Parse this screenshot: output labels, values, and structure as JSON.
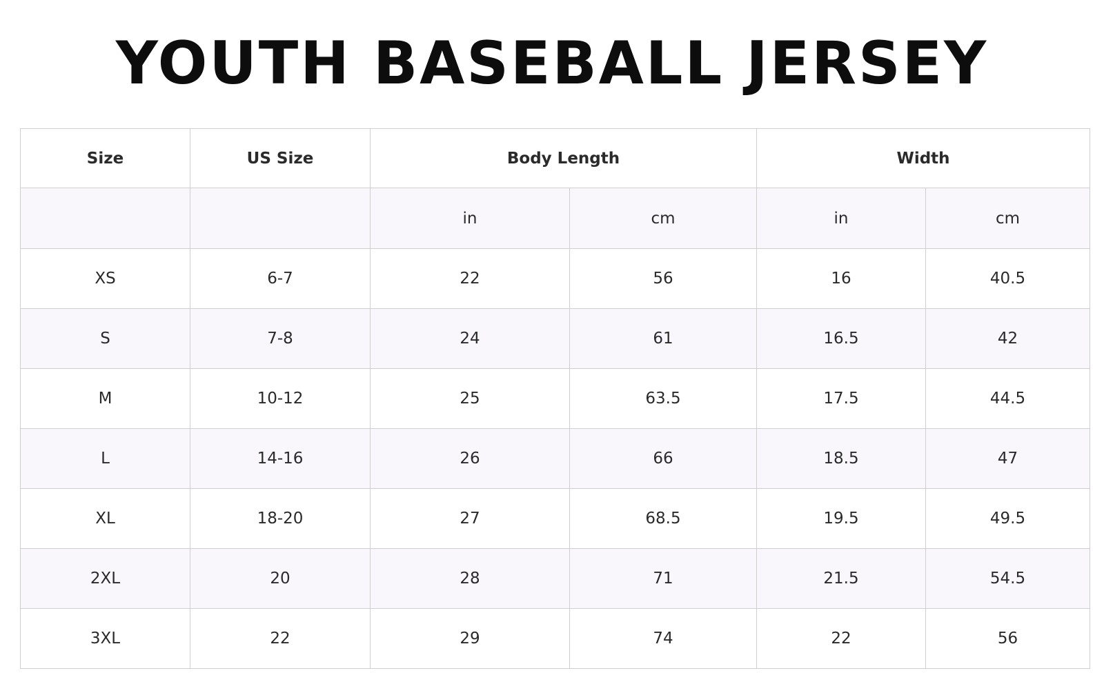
{
  "title": "YOUTH BASEBALL JERSEY",
  "table": {
    "headers": {
      "size": "Size",
      "us_size": "US Size",
      "body_length": "Body Length",
      "width": "Width"
    },
    "units": {
      "body_length_in": "in",
      "body_length_cm": "cm",
      "width_in": "in",
      "width_cm": "cm"
    },
    "rows": [
      [
        "XS",
        "6-7",
        "22",
        "56",
        "16",
        "40.5"
      ],
      [
        "S",
        "7-8",
        "24",
        "61",
        "16.5",
        "42"
      ],
      [
        "M",
        "10-12",
        "25",
        "63.5",
        "17.5",
        "44.5"
      ],
      [
        "L",
        "14-16",
        "26",
        "66",
        "18.5",
        "47"
      ],
      [
        "XL",
        "18-20",
        "27",
        "68.5",
        "19.5",
        "49.5"
      ],
      [
        "2XL",
        "20",
        "28",
        "71",
        "21.5",
        "54.5"
      ],
      [
        "3XL",
        "22",
        "29",
        "74",
        "22",
        "56"
      ]
    ]
  },
  "colors": {
    "alt_row_background": "#f9f6fc",
    "border": "#cfcfcf",
    "title": "#0d0d0d"
  }
}
